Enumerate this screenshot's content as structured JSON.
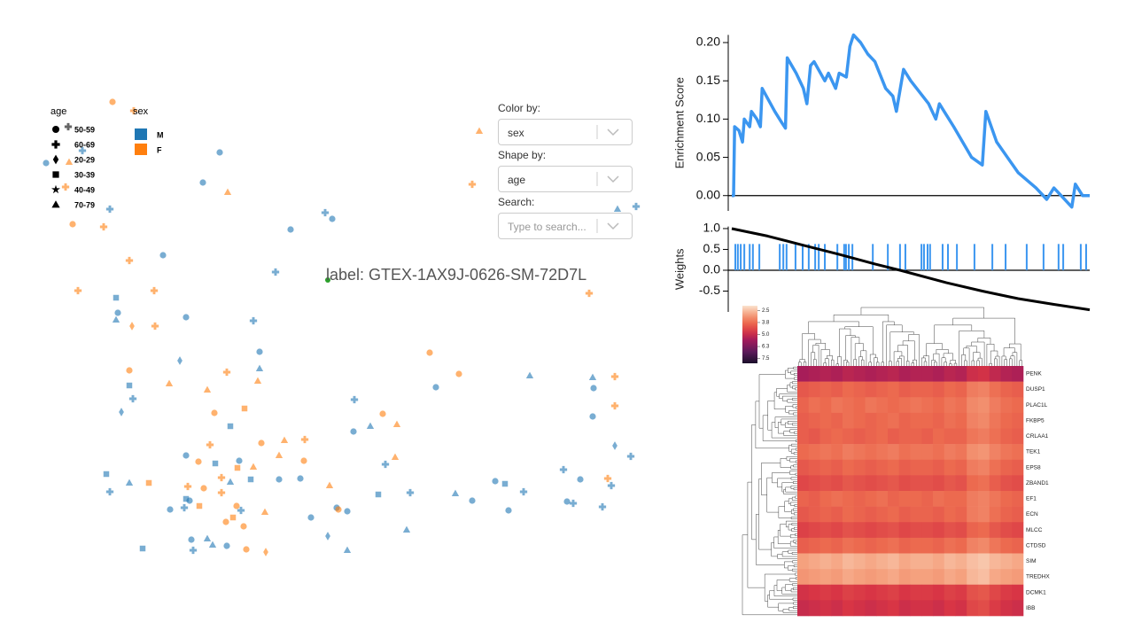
{
  "controls": {
    "color_label": "Color by:",
    "color_value": "sex",
    "shape_label": "Shape by:",
    "shape_value": "age",
    "search_label": "Search:",
    "search_placeholder": "Type to search..."
  },
  "chart_data": [
    {
      "type": "scatter",
      "legend_shape_title": "age",
      "shape_categories": [
        "50-59",
        "60-69",
        "20-29",
        "30-39",
        "40-49",
        "70-79"
      ],
      "legend_color_title": "sex",
      "color_categories": [
        "M",
        "F"
      ],
      "colors": [
        "#1f77b4",
        "#ff7f0e"
      ],
      "xlim": [
        4,
        74
      ],
      "ylim": [
        8,
        62
      ],
      "x": [
        24.8,
        22.9,
        25.7,
        12.4,
        8.2,
        11.7,
        32.8,
        37.5,
        36.7,
        14.6,
        18.4,
        31.1,
        8.8,
        17.4,
        13.1,
        13.3,
        13.1,
        14.9,
        17.5,
        21.0,
        28.6,
        29.3,
        20.3,
        29.3,
        48.5,
        51.8,
        59.8,
        14.6,
        14.6,
        19.1,
        23.4,
        25.6,
        29.1,
        49.2,
        66.5,
        66.9,
        67.0,
        69.4,
        69.4,
        66.9,
        69.4,
        71.2,
        54.1,
        53.3,
        69.7,
        71.8,
        13.7,
        15.0,
        24.2,
        27.6,
        26.0,
        40.0,
        43.2,
        41.8,
        39.9,
        44.8,
        23.7,
        29.5,
        32.1,
        34.4,
        21.0,
        22.4,
        24.3,
        27.0,
        28.6,
        26.8,
        31.5,
        34.3,
        43.5,
        44.6,
        12.0,
        12.4,
        14.6,
        16.8,
        21.2,
        21.0,
        23.0,
        25.0,
        26.0,
        28.3,
        31.5,
        33.9,
        37.2,
        38.0,
        39.2,
        42.7,
        46.3,
        51.4,
        53.3,
        55.9,
        57.0,
        59.1,
        63.6,
        65.5,
        64.0,
        64.7,
        68.0,
        69.0,
        68.6,
        19.2,
        20.8,
        21.4,
        22.5,
        26.7,
        25.0,
        26.3,
        27.2,
        25.5,
        29.9,
        27.5,
        35.1,
        38.2,
        45.9,
        57.4,
        37.0,
        21.6,
        23.4,
        24.0,
        25.6,
        21.8,
        27.8,
        30.0,
        16.1,
        39.2,
        5.2,
        7.8,
        9.3,
        12.7,
        7.4,
        15.1,
        7.7
      ],
      "y": [
        54.8,
        51.4,
        50.3,
        48.4,
        46.7,
        46.4,
        46.1,
        47.3,
        48.0,
        42.6,
        43.2,
        41.3,
        39.2,
        39.2,
        38.4,
        36.7,
        35.9,
        35.2,
        35.2,
        36.2,
        35.8,
        32.3,
        31.3,
        30.4,
        32.2,
        29.8,
        29.6,
        30.2,
        28.5,
        28.7,
        28.0,
        30.0,
        29.0,
        28.3,
        38.9,
        29.4,
        28.2,
        29.5,
        26.2,
        25.0,
        21.7,
        20.5,
        57.2,
        51.2,
        48.4,
        48.7,
        25.5,
        27.0,
        25.4,
        25.9,
        23.9,
        26.9,
        25.3,
        23.9,
        23.3,
        24.1,
        21.8,
        22.0,
        22.3,
        22.4,
        20.6,
        19.9,
        19.7,
        20.0,
        19.3,
        19.2,
        20.6,
        20.0,
        19.6,
        20.4,
        18.5,
        16.5,
        17.5,
        17.5,
        17.1,
        15.7,
        16.9,
        18.1,
        17.6,
        17.9,
        17.9,
        18.0,
        17.2,
        14.7,
        14.3,
        16.2,
        16.4,
        16.3,
        15.5,
        17.7,
        17.4,
        16.5,
        19.0,
        17.9,
        15.4,
        15.2,
        14.8,
        17.2,
        18.0,
        14.5,
        14.7,
        15.5,
        14.9,
        14.9,
        16.4,
        13.6,
        14.4,
        13.1,
        14.2,
        12.6,
        13.6,
        14.5,
        12.2,
        14.4,
        11.5,
        11.1,
        11.2,
        10.5,
        10.4,
        9.9,
        10.0,
        9.7,
        10.1,
        9.9,
        53.6,
        53.7,
        55.0,
        60.5,
        50.9,
        59.5,
        57.7
      ],
      "sex": [
        "M",
        "M",
        "F",
        "M",
        "F",
        "F",
        "M",
        "M",
        "M",
        "F",
        "M",
        "M",
        "F",
        "F",
        "M",
        "M",
        "M",
        "F",
        "F",
        "M",
        "M",
        "M",
        "M",
        "M",
        "F",
        "F",
        "M",
        "F",
        "M",
        "F",
        "F",
        "F",
        "F",
        "M",
        "F",
        "M",
        "M",
        "F",
        "F",
        "M",
        "M",
        "M",
        "F",
        "F",
        "M",
        "M",
        "M",
        "M",
        "F",
        "F",
        "M",
        "M",
        "F",
        "M",
        "M",
        "F",
        "F",
        "F",
        "F",
        "F",
        "M",
        "F",
        "M",
        "M",
        "F",
        "F",
        "F",
        "F",
        "M",
        "F",
        "M",
        "M",
        "M",
        "F",
        "F",
        "M",
        "F",
        "F",
        "M",
        "M",
        "M",
        "M",
        "F",
        "M",
        "M",
        "M",
        "M",
        "M",
        "M",
        "M",
        "M",
        "M",
        "M",
        "M",
        "M",
        "M",
        "M",
        "M",
        "F",
        "M",
        "M",
        "M",
        "F",
        "F",
        "F",
        "F",
        "M",
        "F",
        "F",
        "F",
        "M",
        "F",
        "M",
        "M",
        "M",
        "M",
        "M",
        "M",
        "M",
        "M",
        "F",
        "F",
        "M",
        "M",
        "M",
        "F",
        "M",
        "F",
        "F",
        "F"
      ],
      "age": [
        "50-59",
        "50-59",
        "70-79",
        "60-69",
        "50-59",
        "60-69",
        "50-59",
        "50-59",
        "60-69",
        "60-69",
        "50-59",
        "60-69",
        "60-69",
        "60-69",
        "30-39",
        "50-59",
        "70-79",
        "20-29",
        "60-69",
        "50-59",
        "60-69",
        "50-59",
        "20-29",
        "70-79",
        "50-59",
        "50-59",
        "70-79",
        "50-59",
        "30-39",
        "70-79",
        "70-79",
        "60-69",
        "70-79",
        "50-59",
        "60-69",
        "70-79",
        "50-59",
        "60-69",
        "60-69",
        "50-59",
        "20-29",
        "60-69",
        "70-79",
        "60-69",
        "70-79",
        "60-69",
        "20-29",
        "60-69",
        "50-59",
        "30-39",
        "30-39",
        "60-69",
        "50-59",
        "70-79",
        "50-59",
        "70-79",
        "60-69",
        "50-59",
        "70-79",
        "60-69",
        "50-59",
        "50-59",
        "30-39",
        "50-59",
        "70-79",
        "30-39",
        "70-79",
        "50-59",
        "60-69",
        "70-79",
        "30-39",
        "60-69",
        "70-79",
        "30-39",
        "60-69",
        "30-39",
        "50-59",
        "60-69",
        "70-79",
        "30-39",
        "50-59",
        "50-59",
        "70-79",
        "50-59",
        "50-59",
        "30-39",
        "60-69",
        "70-79",
        "50-59",
        "50-59",
        "30-39",
        "60-69",
        "60-69",
        "50-59",
        "50-59",
        "60-69",
        "60-69",
        "60-69",
        "60-69",
        "50-59",
        "60-69",
        "50-59",
        "30-39",
        "50-59",
        "60-69",
        "30-39",
        "60-69",
        "50-59",
        "70-79",
        "50-59",
        "50-59",
        "50-59",
        "70-79",
        "50-59",
        "20-29",
        "50-59",
        "70-79",
        "70-79",
        "50-59",
        "60-69",
        "50-59",
        "20-29",
        "30-39",
        "70-79",
        "50-59",
        "70-79",
        "60-69",
        "50-59",
        "60-69",
        "60-69",
        "60-69"
      ],
      "highlight": {
        "x": 37.0,
        "y": 40.4,
        "color": "#2ca02c",
        "label": "label: GTEX-1AX9J-0626-SM-72D7L"
      }
    },
    {
      "type": "line",
      "ylabel": "Enrichment Score",
      "xlim": [
        0,
        1
      ],
      "ylim": [
        -0.02,
        0.21
      ],
      "yticks": [
        {
          "value": 0,
          "label": "0.00"
        },
        {
          "value": 0.05,
          "label": "0.05"
        },
        {
          "value": 0.1,
          "label": "0.10"
        },
        {
          "value": 0.15,
          "label": "0.15"
        },
        {
          "value": 0.2,
          "label": "0.20"
        }
      ],
      "x": [
        0,
        0.005,
        0.008,
        0.02,
        0.03,
        0.035,
        0.05,
        0.055,
        0.07,
        0.08,
        0.085,
        0.12,
        0.14,
        0.15,
        0.155,
        0.18,
        0.2,
        0.21,
        0.22,
        0.23,
        0.26,
        0.27,
        0.29,
        0.3,
        0.32,
        0.33,
        0.34,
        0.36,
        0.38,
        0.4,
        0.43,
        0.45,
        0.46,
        0.48,
        0.5,
        0.55,
        0.57,
        0.58,
        0.62,
        0.67,
        0.7,
        0.71,
        0.74,
        0.8,
        0.85,
        0.88,
        0.9,
        0.92,
        0.95,
        0.96,
        0.98,
        1.0
      ],
      "values": [
        0,
        0,
        0.09,
        0.085,
        0.07,
        0.1,
        0.09,
        0.11,
        0.1,
        0.09,
        0.14,
        0.11,
        0.095,
        0.088,
        0.18,
        0.16,
        0.14,
        0.12,
        0.17,
        0.175,
        0.15,
        0.16,
        0.14,
        0.16,
        0.155,
        0.195,
        0.21,
        0.2,
        0.185,
        0.175,
        0.14,
        0.13,
        0.11,
        0.165,
        0.15,
        0.12,
        0.1,
        0.12,
        0.09,
        0.05,
        0.04,
        0.11,
        0.07,
        0.03,
        0.01,
        -0.005,
        0.01,
        0,
        -0.015,
        0.015,
        0,
        0
      ],
      "color": "#3b96f0"
    },
    {
      "type": "line",
      "ylabel": "Weights",
      "xlim": [
        0,
        1
      ],
      "ylim": [
        -1,
        1.05
      ],
      "yticks": [
        {
          "value": 1,
          "label": "1.0"
        },
        {
          "value": 0.5,
          "label": "0.5"
        },
        {
          "value": 0,
          "label": "0.0"
        },
        {
          "value": -0.5,
          "label": "-0.5"
        }
      ],
      "x": [
        0,
        0.1,
        0.2,
        0.3,
        0.4,
        0.47,
        0.6,
        0.7,
        0.8,
        0.9,
        1.0
      ],
      "values": [
        1.0,
        0.82,
        0.6,
        0.38,
        0.15,
        0.0,
        -0.3,
        -0.5,
        -0.68,
        -0.82,
        -0.95
      ],
      "color": "#000000",
      "hits": [
        0.01,
        0.017,
        0.025,
        0.035,
        0.05,
        0.059,
        0.077,
        0.134,
        0.144,
        0.153,
        0.178,
        0.198,
        0.215,
        0.233,
        0.243,
        0.26,
        0.295,
        0.314,
        0.319,
        0.327,
        0.337,
        0.394,
        0.436,
        0.47,
        0.485,
        0.53,
        0.537,
        0.547,
        0.554,
        0.589,
        0.604,
        0.629,
        0.678,
        0.728,
        0.765,
        0.824,
        0.871,
        0.913,
        0.926,
        0.975,
        0.99
      ],
      "hit_color": "#3b96f0"
    },
    {
      "type": "heatmap",
      "clim": [
        2,
        8
      ],
      "cticks": [
        {
          "value": 2.5,
          "label": "2.5"
        },
        {
          "value": 3.75,
          "label": "3.8"
        },
        {
          "value": 5,
          "label": "5.0"
        },
        {
          "value": 6.25,
          "label": "6.3"
        },
        {
          "value": 7.5,
          "label": "7.5"
        }
      ],
      "rows": [
        "PENK",
        "DUSP1",
        "PLAC1L",
        "FKBP5",
        "CRLAA1",
        "TEK1",
        "EPS8",
        "ZBAND1",
        "EF1",
        "ECN",
        "MLCC",
        "CTDSD",
        "SIM",
        "TREDHX",
        "DCMK1",
        "IBB"
      ],
      "values": [
        [
          5.5,
          5.4,
          5.3,
          5.4,
          5.2,
          5.3,
          5.4,
          5.3,
          5.2,
          5.4,
          5.3,
          5.3,
          5.4,
          5.2,
          5.3,
          4.9,
          4.8,
          5.1,
          5.3,
          5.4
        ],
        [
          4.1,
          4.0,
          3.9,
          4.0,
          3.8,
          3.9,
          4.0,
          3.9,
          3.8,
          4.0,
          3.9,
          3.9,
          4.0,
          3.8,
          3.9,
          3.5,
          3.4,
          3.7,
          3.9,
          4.0
        ],
        [
          3.9,
          3.7,
          3.8,
          3.6,
          3.7,
          3.8,
          3.6,
          3.7,
          3.8,
          3.7,
          3.6,
          3.7,
          3.8,
          3.6,
          3.7,
          3.3,
          3.2,
          3.5,
          3.7,
          3.8
        ],
        [
          4.0,
          3.9,
          3.8,
          3.9,
          3.7,
          3.8,
          3.9,
          3.8,
          3.7,
          3.9,
          3.8,
          3.8,
          3.9,
          3.7,
          3.8,
          3.4,
          3.3,
          3.6,
          3.8,
          3.9
        ],
        [
          4.0,
          4.1,
          3.9,
          3.8,
          3.9,
          4.0,
          3.9,
          3.8,
          4.0,
          3.9,
          3.9,
          4.0,
          3.8,
          3.9,
          3.9,
          3.6,
          3.5,
          3.7,
          3.9,
          4.0
        ],
        [
          3.8,
          3.7,
          3.6,
          3.7,
          3.5,
          3.6,
          3.7,
          3.6,
          3.5,
          3.7,
          3.6,
          3.6,
          3.7,
          3.5,
          3.6,
          3.2,
          3.1,
          3.4,
          3.6,
          3.7
        ],
        [
          4.1,
          4.0,
          3.9,
          4.0,
          3.8,
          3.9,
          4.0,
          3.9,
          3.8,
          4.0,
          3.9,
          3.9,
          4.0,
          3.8,
          3.9,
          3.5,
          3.4,
          3.7,
          3.9,
          4.0
        ],
        [
          4.4,
          4.3,
          4.2,
          4.3,
          4.1,
          4.2,
          4.3,
          4.2,
          4.1,
          4.3,
          4.2,
          4.2,
          4.3,
          4.1,
          4.2,
          3.8,
          3.7,
          4.0,
          4.2,
          4.3
        ],
        [
          3.9,
          4.0,
          3.8,
          3.7,
          3.8,
          3.9,
          3.8,
          3.7,
          3.9,
          3.8,
          3.8,
          3.9,
          3.7,
          3.8,
          3.8,
          3.5,
          3.4,
          3.6,
          3.8,
          3.9
        ],
        [
          4.1,
          4.0,
          3.9,
          4.0,
          3.8,
          3.9,
          4.0,
          3.9,
          3.8,
          4.0,
          3.9,
          3.9,
          4.0,
          3.8,
          3.9,
          3.5,
          3.4,
          3.7,
          3.9,
          4.0
        ],
        [
          4.5,
          4.4,
          4.3,
          4.4,
          4.2,
          4.3,
          4.4,
          4.3,
          4.2,
          4.4,
          4.3,
          4.3,
          4.4,
          4.2,
          4.3,
          3.9,
          3.8,
          4.1,
          4.3,
          4.4
        ],
        [
          4.0,
          3.9,
          3.8,
          3.9,
          3.7,
          3.8,
          3.9,
          3.8,
          3.7,
          3.9,
          3.8,
          3.8,
          3.9,
          3.7,
          3.8,
          3.4,
          3.3,
          3.6,
          3.8,
          3.9
        ],
        [
          2.9,
          2.8,
          2.7,
          2.8,
          2.6,
          2.7,
          2.8,
          2.7,
          2.6,
          2.8,
          2.7,
          2.7,
          2.8,
          2.6,
          2.7,
          2.5,
          2.4,
          2.6,
          2.7,
          2.8
        ],
        [
          3.1,
          3.0,
          2.9,
          3.0,
          2.8,
          2.9,
          3.0,
          2.9,
          2.8,
          3.0,
          2.9,
          2.9,
          3.0,
          2.8,
          2.9,
          2.6,
          2.5,
          2.8,
          2.9,
          3.0
        ],
        [
          4.8,
          4.7,
          4.6,
          4.7,
          4.5,
          4.6,
          4.7,
          4.6,
          4.5,
          4.7,
          4.6,
          4.6,
          4.7,
          4.5,
          4.6,
          4.2,
          4.1,
          4.4,
          4.6,
          4.7
        ],
        [
          5.0,
          4.9,
          4.8,
          4.9,
          4.7,
          4.8,
          4.9,
          4.8,
          4.7,
          4.9,
          4.8,
          4.8,
          4.9,
          4.7,
          4.8,
          4.4,
          4.3,
          4.6,
          4.8,
          4.9
        ]
      ]
    }
  ]
}
